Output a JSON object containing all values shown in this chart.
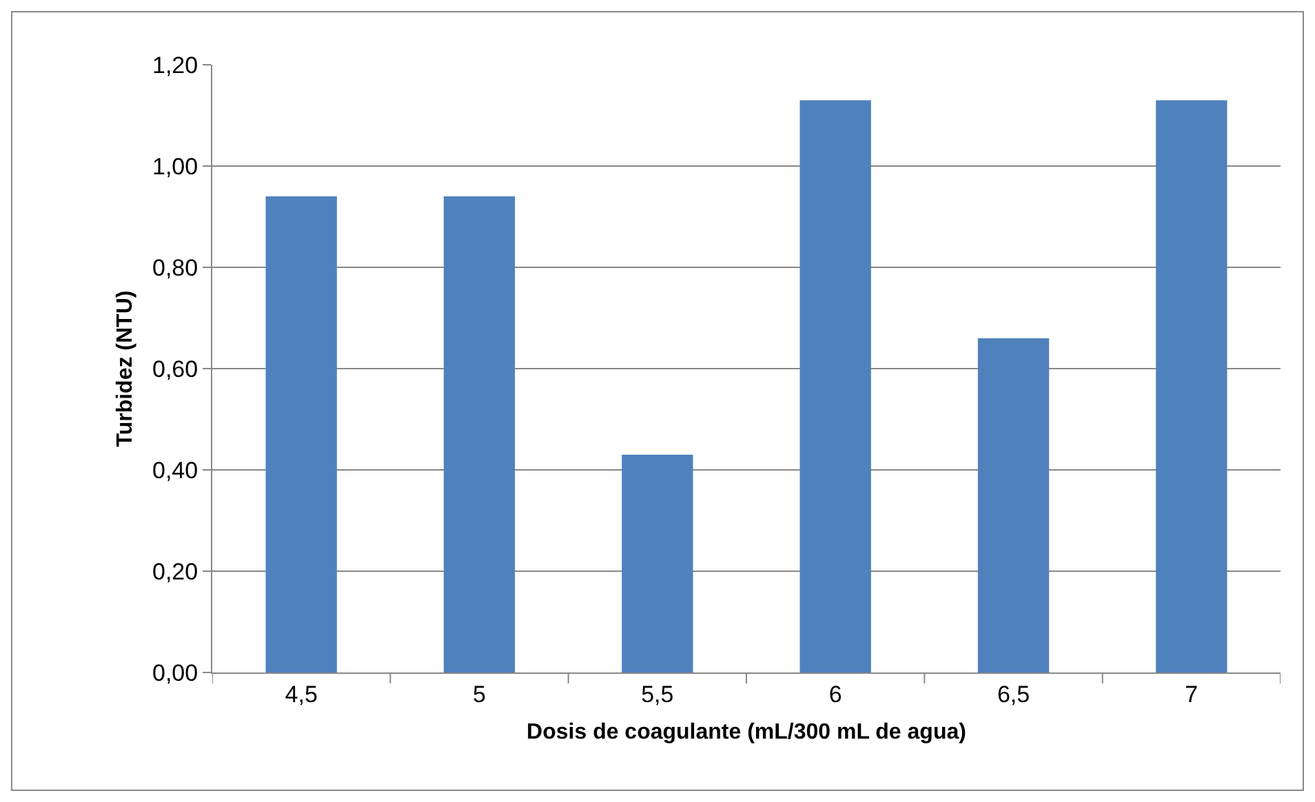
{
  "chart_data": {
    "type": "bar",
    "xlabel": "Dosis de coagulante (mL/300 mL de agua)",
    "ylabel": "Turbidez (NTU)",
    "categories": [
      "4,5",
      "5",
      "5,5",
      "6",
      "6,5",
      "7"
    ],
    "values": [
      0.94,
      0.94,
      0.43,
      1.13,
      0.66,
      1.13
    ],
    "color": "#4f81bd",
    "ylim": [
      0,
      1.2
    ],
    "yticks": [
      {
        "value": 0,
        "label": "0,00"
      },
      {
        "value": 0.2,
        "label": "0,20"
      },
      {
        "value": 0.4,
        "label": "0,40"
      },
      {
        "value": 0.6,
        "label": "0,60"
      },
      {
        "value": 0.8,
        "label": "0,80"
      },
      {
        "value": 1,
        "label": "1,00"
      },
      {
        "value": 1.2,
        "label": "1,20"
      }
    ],
    "grid": "y",
    "legend": false
  }
}
